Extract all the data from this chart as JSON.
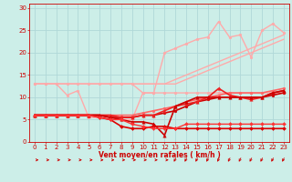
{
  "title": "",
  "xlabel": "Vent moyen/en rafales ( km/h )",
  "background_color": "#cceee8",
  "grid_color": "#b0d8d8",
  "xlim": [
    -0.5,
    23.5
  ],
  "ylim": [
    0,
    31
  ],
  "yticks": [
    0,
    5,
    10,
    15,
    20,
    25,
    30
  ],
  "xticks": [
    0,
    1,
    2,
    3,
    4,
    5,
    6,
    7,
    8,
    9,
    10,
    11,
    12,
    13,
    14,
    15,
    16,
    17,
    18,
    19,
    20,
    21,
    22,
    23
  ],
  "series": [
    {
      "x": [
        0,
        1,
        2,
        3,
        4,
        5,
        6,
        7,
        8,
        9,
        10,
        11,
        12,
        13,
        14,
        15,
        16,
        17,
        18,
        19,
        20,
        21,
        22,
        23
      ],
      "y": [
        13,
        13,
        13,
        13,
        13,
        13,
        13,
        13,
        13,
        13,
        13,
        13,
        13,
        13,
        14,
        15,
        16,
        17,
        18,
        19,
        20,
        21,
        22,
        23
      ],
      "color": "#ffaaaa",
      "lw": 1.0,
      "marker": null,
      "ms": 0
    },
    {
      "x": [
        0,
        1,
        2,
        3,
        4,
        5,
        6,
        7,
        8,
        9,
        10,
        11,
        12,
        13,
        14,
        15,
        16,
        17,
        18,
        19,
        20,
        21,
        22,
        23
      ],
      "y": [
        13,
        13,
        13,
        13,
        13,
        13,
        13,
        13,
        13,
        13,
        13,
        13,
        13,
        14,
        15,
        16,
        17,
        18,
        19,
        20,
        21,
        22,
        23,
        24
      ],
      "color": "#ffaaaa",
      "lw": 1.0,
      "marker": null,
      "ms": 0
    },
    {
      "x": [
        0,
        1,
        2,
        3,
        4,
        5,
        6,
        7,
        8,
        9,
        10,
        11,
        12,
        13,
        14,
        15,
        16,
        17,
        18,
        19,
        20,
        21,
        22,
        23
      ],
      "y": [
        13,
        13,
        13,
        13,
        13,
        13,
        13,
        13,
        13,
        13,
        11,
        11,
        11,
        11,
        11,
        11,
        11,
        11,
        11,
        11,
        11,
        11,
        11,
        11
      ],
      "color": "#ffaaaa",
      "lw": 1.0,
      "marker": "o",
      "ms": 2.0
    },
    {
      "x": [
        0,
        1,
        2,
        3,
        4,
        5,
        6,
        7,
        8,
        9,
        10,
        11,
        12,
        13,
        14,
        15,
        16,
        17,
        18,
        19,
        20,
        21,
        22,
        23
      ],
      "y": [
        13,
        13,
        13,
        10.5,
        11.5,
        5.5,
        5.5,
        5.5,
        5,
        5,
        11,
        11,
        20,
        21,
        22,
        23,
        23.5,
        27,
        23.5,
        24,
        19,
        25,
        26.5,
        24.5
      ],
      "color": "#ffaaaa",
      "lw": 1.0,
      "marker": "o",
      "ms": 2.0
    },
    {
      "x": [
        0,
        1,
        2,
        3,
        4,
        5,
        6,
        7,
        8,
        9,
        10,
        11,
        12,
        13,
        14,
        15,
        16,
        17,
        18,
        19,
        20,
        21,
        22,
        23
      ],
      "y": [
        6,
        6,
        6,
        6,
        6,
        6,
        6,
        6,
        6,
        6,
        6.5,
        7,
        7.5,
        8,
        9,
        9.5,
        10,
        10.5,
        11,
        11,
        11,
        11,
        11.5,
        12
      ],
      "color": "#ff6666",
      "lw": 1.2,
      "marker": "o",
      "ms": 2.0
    },
    {
      "x": [
        0,
        1,
        2,
        3,
        4,
        5,
        6,
        7,
        8,
        9,
        10,
        11,
        12,
        13,
        14,
        15,
        16,
        17,
        18,
        19,
        20,
        21,
        22,
        23
      ],
      "y": [
        6,
        6,
        6,
        6,
        6,
        6,
        6,
        5.5,
        5.5,
        5.5,
        6,
        6,
        6.5,
        7,
        8,
        9,
        9.5,
        10,
        10,
        10,
        10,
        10,
        10.5,
        11
      ],
      "color": "#cc0000",
      "lw": 1.2,
      "marker": "o",
      "ms": 2.0
    },
    {
      "x": [
        0,
        1,
        2,
        3,
        4,
        5,
        6,
        7,
        8,
        9,
        10,
        11,
        12,
        13,
        14,
        15,
        16,
        17,
        18,
        19,
        20,
        21,
        22,
        23
      ],
      "y": [
        6,
        6,
        6,
        6,
        6,
        6,
        6,
        6,
        5.5,
        5.5,
        6,
        6,
        7,
        8,
        8.5,
        9,
        10,
        12,
        10.5,
        10,
        9.5,
        10,
        11,
        11.5
      ],
      "color": "#ee2222",
      "lw": 1.2,
      "marker": "^",
      "ms": 2.5
    },
    {
      "x": [
        0,
        1,
        2,
        3,
        4,
        5,
        6,
        7,
        8,
        9,
        10,
        11,
        12,
        13,
        14,
        15,
        16,
        17,
        18,
        19,
        20,
        21,
        22,
        23
      ],
      "y": [
        6,
        6,
        6,
        6,
        6,
        6,
        6,
        5.5,
        5,
        4.5,
        4.5,
        4,
        1.5,
        8,
        9,
        10,
        10,
        10,
        10,
        10,
        10,
        10,
        11,
        11.5
      ],
      "color": "#cc0000",
      "lw": 1.2,
      "marker": "^",
      "ms": 2.5
    },
    {
      "x": [
        0,
        1,
        2,
        3,
        4,
        5,
        6,
        7,
        8,
        9,
        10,
        11,
        12,
        13,
        14,
        15,
        16,
        17,
        18,
        19,
        20,
        21,
        22,
        23
      ],
      "y": [
        6,
        6,
        6,
        6,
        6,
        6,
        5.5,
        5,
        3.5,
        3,
        3,
        3.5,
        3.5,
        3,
        3,
        3,
        3,
        3,
        3,
        3,
        3,
        3,
        3,
        3
      ],
      "color": "#dd0000",
      "lw": 1.2,
      "marker": "D",
      "ms": 2.0
    },
    {
      "x": [
        0,
        1,
        2,
        3,
        4,
        5,
        6,
        7,
        8,
        9,
        10,
        11,
        12,
        13,
        14,
        15,
        16,
        17,
        18,
        19,
        20,
        21,
        22,
        23
      ],
      "y": [
        6,
        6,
        6,
        6,
        6,
        6,
        5.5,
        5,
        5,
        4,
        3.5,
        3,
        3,
        3,
        4,
        4,
        4,
        4,
        4,
        4,
        4,
        4,
        4,
        4
      ],
      "color": "#ff3333",
      "lw": 1.0,
      "marker": "D",
      "ms": 2.0
    }
  ],
  "arrow_x_right": [
    0,
    1,
    2,
    3,
    4,
    5,
    6,
    7,
    8,
    9,
    10,
    11,
    12
  ],
  "arrow_x_downleft": [
    13,
    14,
    15,
    16,
    17,
    18,
    19,
    20,
    21,
    22,
    23
  ]
}
